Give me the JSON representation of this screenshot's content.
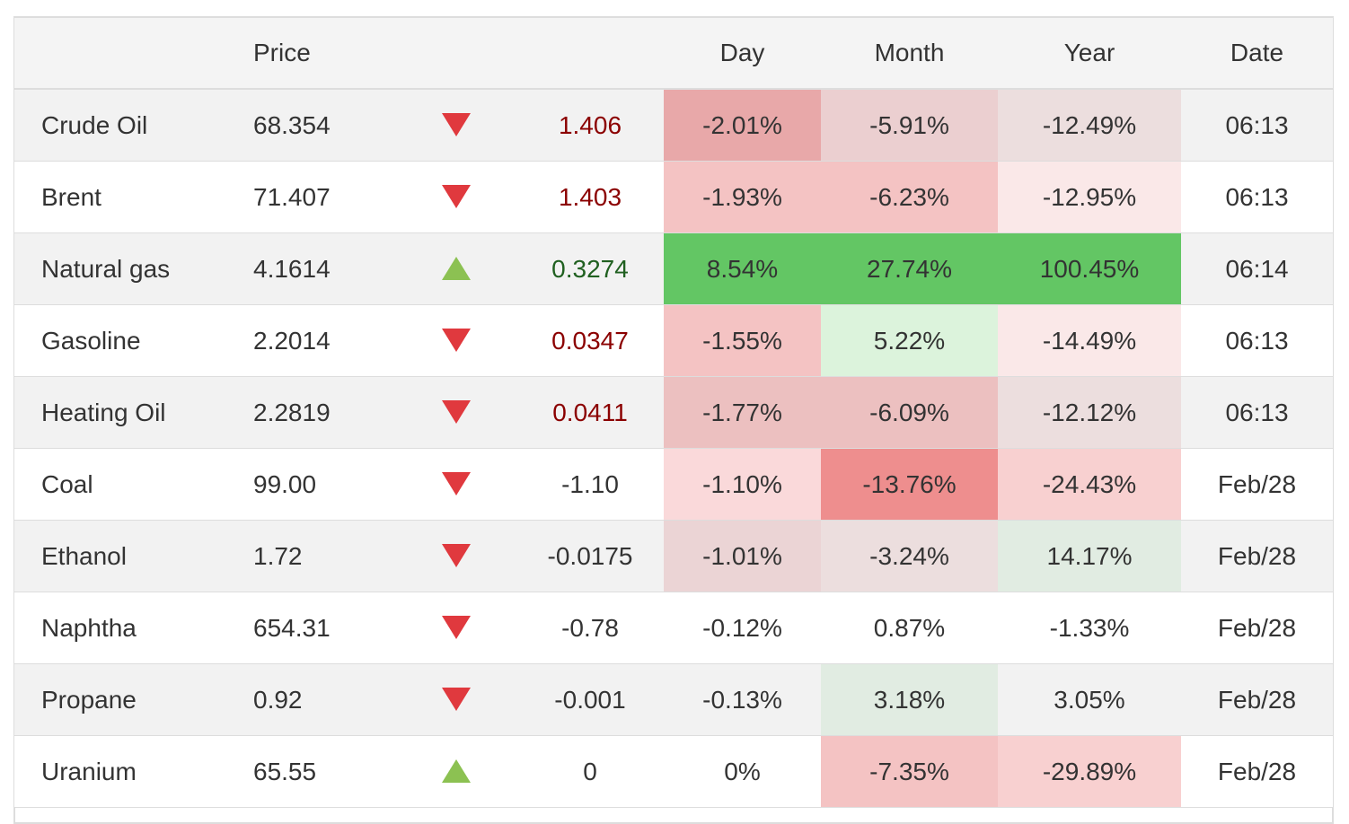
{
  "headers": {
    "name": "",
    "price": "Price",
    "arrow": "",
    "change": "",
    "day": "Day",
    "month": "Month",
    "year": "Year",
    "date": "Date"
  },
  "rows": [
    {
      "name": "Crude Oil",
      "price": "68.354",
      "direction": "down",
      "change": "1.406",
      "change_tone": "neg",
      "day": "-2.01%",
      "day_bg": "#e8a8a9",
      "month": "-5.91%",
      "month_bg": "#ebcfd0",
      "year": "-12.49%",
      "year_bg": "#ecdede",
      "date": "06:13"
    },
    {
      "name": "Brent",
      "price": "71.407",
      "direction": "down",
      "change": "1.403",
      "change_tone": "neg",
      "day": "-1.93%",
      "day_bg": "#f4c3c3",
      "month": "-6.23%",
      "month_bg": "#f4c3c3",
      "year": "-12.95%",
      "year_bg": "#fae8e8",
      "date": "06:13"
    },
    {
      "name": "Natural gas",
      "price": "4.1614",
      "direction": "up",
      "change": "0.3274",
      "change_tone": "pos",
      "day": "8.54%",
      "day_bg": "#63c664",
      "month": "27.74%",
      "month_bg": "#63c664",
      "year": "100.45%",
      "year_bg": "#63c664",
      "date": "06:14"
    },
    {
      "name": "Gasoline",
      "price": "2.2014",
      "direction": "down",
      "change": "0.0347",
      "change_tone": "neg",
      "day": "-1.55%",
      "day_bg": "#f4c3c3",
      "month": "5.22%",
      "month_bg": "#dcf3dc",
      "year": "-14.49%",
      "year_bg": "#fae8e8",
      "date": "06:13"
    },
    {
      "name": "Heating Oil",
      "price": "2.2819",
      "direction": "down",
      "change": "0.0411",
      "change_tone": "neg",
      "day": "-1.77%",
      "day_bg": "#ecc0c0",
      "month": "-6.09%",
      "month_bg": "#ecc0c0",
      "year": "-12.12%",
      "year_bg": "#ecdede",
      "date": "06:13"
    },
    {
      "name": "Coal",
      "price": "99.00",
      "direction": "down",
      "change": "-1.10",
      "change_tone": "neutral",
      "day": "-1.10%",
      "day_bg": "#fad9da",
      "month": "-13.76%",
      "month_bg": "#ee8e8e",
      "year": "-24.43%",
      "year_bg": "#f8d0d0",
      "date": "Feb/28"
    },
    {
      "name": "Ethanol",
      "price": "1.72",
      "direction": "down",
      "change": "-0.0175",
      "change_tone": "neutral",
      "day": "-1.01%",
      "day_bg": "#ebd4d5",
      "month": "-3.24%",
      "month_bg": "#ecdede",
      "year": "14.17%",
      "year_bg": "#e1ece2",
      "date": "Feb/28"
    },
    {
      "name": "Naphtha",
      "price": "654.31",
      "direction": "down",
      "change": "-0.78",
      "change_tone": "neutral",
      "day": "-0.12%",
      "day_bg": "",
      "month": "0.87%",
      "month_bg": "",
      "year": "-1.33%",
      "year_bg": "",
      "date": "Feb/28"
    },
    {
      "name": "Propane",
      "price": "0.92",
      "direction": "down",
      "change": "-0.001",
      "change_tone": "neutral",
      "day": "-0.13%",
      "day_bg": "",
      "month": "3.18%",
      "month_bg": "#e1ece2",
      "year": "3.05%",
      "year_bg": "",
      "date": "Feb/28"
    },
    {
      "name": "Uranium",
      "price": "65.55",
      "direction": "up",
      "change": "0",
      "change_tone": "neutral",
      "day": "0%",
      "day_bg": "",
      "month": "-7.35%",
      "month_bg": "#f4c3c3",
      "year": "-29.89%",
      "year_bg": "#f8d0d0",
      "date": "Feb/28"
    }
  ]
}
